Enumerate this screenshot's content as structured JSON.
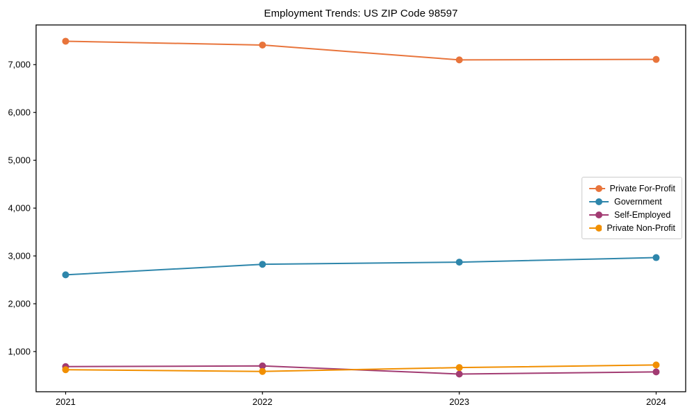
{
  "chart_data": {
    "type": "line",
    "title": "Employment Trends: US ZIP Code 98597",
    "xlabel": "",
    "ylabel": "",
    "x": [
      2021,
      2022,
      2023,
      2024
    ],
    "x_tick_labels": [
      "2021",
      "2022",
      "2023",
      "2024"
    ],
    "series": [
      {
        "name": "Private For-Profit",
        "color": "#E8743B",
        "values": [
          7490,
          7410,
          7100,
          7110
        ]
      },
      {
        "name": "Government",
        "color": "#2E86AB",
        "values": [
          2605,
          2825,
          2870,
          2965
        ]
      },
      {
        "name": "Self-Employed",
        "color": "#A23B72",
        "values": [
          685,
          700,
          530,
          575
        ]
      },
      {
        "name": "Private Non-Profit",
        "color": "#F18F01",
        "values": [
          620,
          585,
          665,
          720
        ]
      }
    ],
    "yticks": [
      1000,
      2000,
      3000,
      4000,
      5000,
      6000,
      7000
    ],
    "ytick_labels": [
      "1,000",
      "2,000",
      "3,000",
      "4,000",
      "5,000",
      "6,000",
      "7,000"
    ],
    "xlim": [
      2020.85,
      2024.15
    ],
    "ylim": [
      160,
      7830
    ],
    "grid": false,
    "legend_position": "center right",
    "axis_color": "#000000",
    "background": "#ffffff",
    "line_width": 2,
    "marker": "circle",
    "marker_radius": 5
  }
}
